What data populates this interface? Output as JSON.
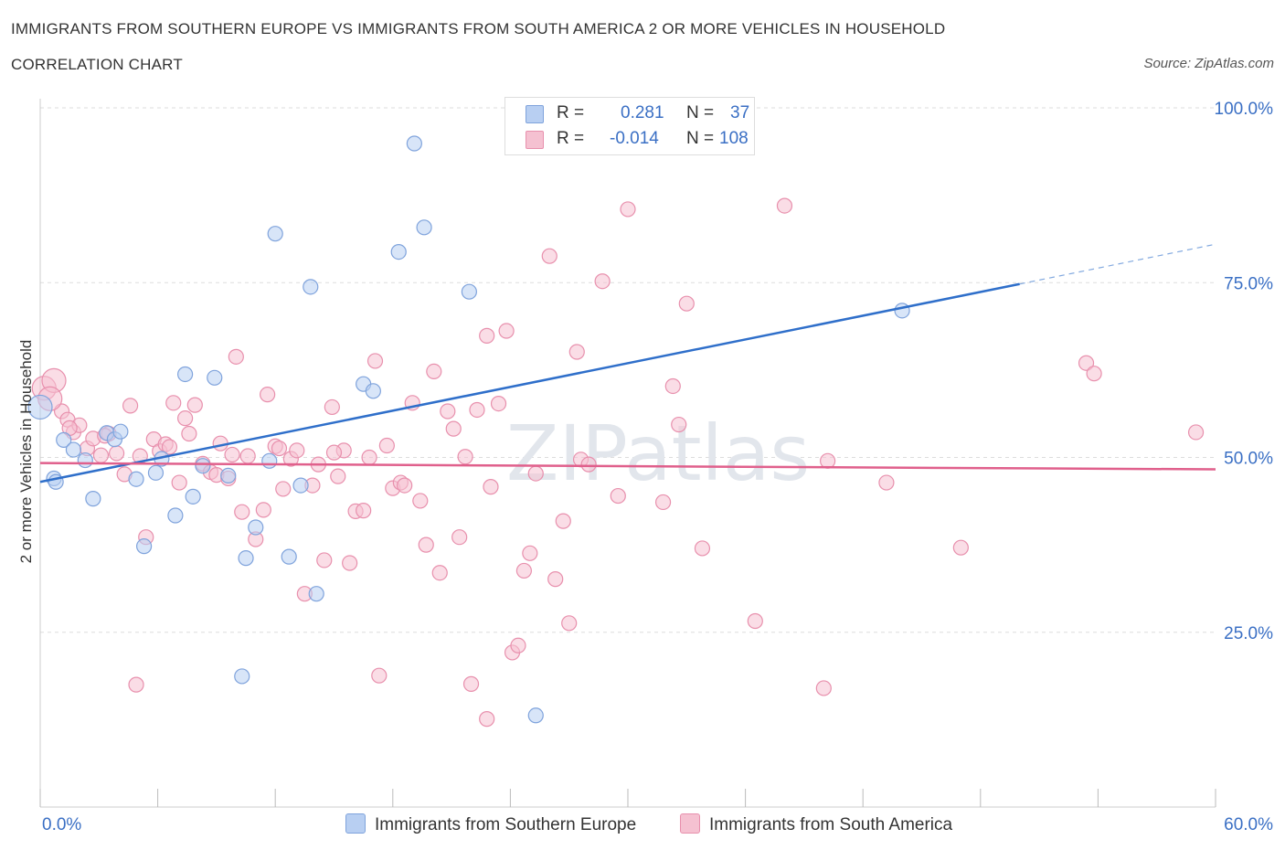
{
  "header": {
    "title": "IMMIGRANTS FROM SOUTHERN EUROPE VS IMMIGRANTS FROM SOUTH AMERICA 2 OR MORE VEHICLES IN HOUSEHOLD",
    "subtitle": "CORRELATION CHART",
    "source": "Source: ZipAtlas.com"
  },
  "watermark": "ZIPatlas",
  "legend": {
    "rows": [
      {
        "r_label": "R =",
        "r_value": "0.281",
        "n_label": "N =",
        "n_value": "37"
      },
      {
        "r_label": "R =",
        "r_value": "-0.014",
        "n_label": "N =",
        "n_value": "108"
      }
    ]
  },
  "colors": {
    "series_a_fill": "#b8cff2",
    "series_a_stroke": "#7fa3dc",
    "series_a_line": "#2f6fca",
    "series_b_fill": "#f5c1d1",
    "series_b_stroke": "#e890ad",
    "series_b_line": "#e0608c",
    "axis_label": "#3a6fc4",
    "grid": "#dddddd"
  },
  "chart_data": {
    "type": "scatter",
    "title": "IMMIGRANTS FROM SOUTHERN EUROPE VS IMMIGRANTS FROM SOUTH AMERICA 2 OR MORE VEHICLES IN HOUSEHOLD",
    "xlabel": "",
    "ylabel": "2 or more Vehicles in Household",
    "xlim": [
      0,
      60
    ],
    "ylim": [
      0,
      100
    ],
    "x_tick_labels": [
      "0.0%",
      "60.0%"
    ],
    "y_tick_labels": [
      "25.0%",
      "50.0%",
      "75.0%",
      "100.0%"
    ],
    "y_ticks": [
      25,
      50,
      75,
      100
    ],
    "grid": true,
    "legend_position": "top-center",
    "series": [
      {
        "name": "Immigrants from Southern Europe",
        "R": 0.281,
        "N": 37,
        "trend": {
          "x": [
            0,
            50
          ],
          "y": [
            46.5,
            74.8
          ],
          "dashed_to": [
            60,
            80.5
          ]
        },
        "points": [
          [
            0.0,
            57.2
          ],
          [
            0.7,
            47.0
          ],
          [
            1.2,
            52.5
          ],
          [
            1.7,
            51.1
          ],
          [
            2.3,
            49.6
          ],
          [
            2.7,
            44.1
          ],
          [
            3.4,
            53.5
          ],
          [
            3.8,
            52.6
          ],
          [
            4.1,
            53.7
          ],
          [
            4.9,
            46.9
          ],
          [
            5.3,
            37.3
          ],
          [
            5.9,
            47.8
          ],
          [
            6.2,
            49.8
          ],
          [
            6.9,
            41.7
          ],
          [
            7.4,
            61.9
          ],
          [
            7.8,
            44.4
          ],
          [
            8.3,
            48.8
          ],
          [
            8.9,
            61.4
          ],
          [
            9.6,
            47.4
          ],
          [
            10.3,
            18.7
          ],
          [
            10.5,
            35.6
          ],
          [
            11.0,
            40.0
          ],
          [
            11.7,
            49.5
          ],
          [
            12.0,
            82.0
          ],
          [
            12.7,
            35.8
          ],
          [
            13.3,
            46.0
          ],
          [
            13.8,
            74.4
          ],
          [
            14.1,
            30.5
          ],
          [
            16.5,
            60.5
          ],
          [
            17.0,
            59.5
          ],
          [
            18.3,
            79.4
          ],
          [
            19.1,
            94.9
          ],
          [
            19.6,
            82.9
          ],
          [
            21.9,
            73.7
          ],
          [
            25.3,
            13.1
          ],
          [
            44.0,
            71.0
          ],
          [
            0.8,
            46.5
          ]
        ]
      },
      {
        "name": "Immigrants from South America",
        "R": -0.014,
        "N": 108,
        "trend": {
          "x": [
            0,
            60
          ],
          "y": [
            49.2,
            48.3
          ]
        },
        "points": [
          [
            0.2,
            59.9
          ],
          [
            0.7,
            61.0
          ],
          [
            1.1,
            56.6
          ],
          [
            1.4,
            55.4
          ],
          [
            1.7,
            53.6
          ],
          [
            2.0,
            54.6
          ],
          [
            2.4,
            51.3
          ],
          [
            2.7,
            52.7
          ],
          [
            3.1,
            50.3
          ],
          [
            3.5,
            53.4
          ],
          [
            3.9,
            50.6
          ],
          [
            4.3,
            47.6
          ],
          [
            4.6,
            57.4
          ],
          [
            4.9,
            17.5
          ],
          [
            5.1,
            50.2
          ],
          [
            5.4,
            38.6
          ],
          [
            5.8,
            52.6
          ],
          [
            6.1,
            50.9
          ],
          [
            6.4,
            51.9
          ],
          [
            6.8,
            57.8
          ],
          [
            7.1,
            46.4
          ],
          [
            7.4,
            55.6
          ],
          [
            7.6,
            53.4
          ],
          [
            7.9,
            57.5
          ],
          [
            8.3,
            49.1
          ],
          [
            8.7,
            47.9
          ],
          [
            9.0,
            47.5
          ],
          [
            9.2,
            52.0
          ],
          [
            9.6,
            47.0
          ],
          [
            10.0,
            64.4
          ],
          [
            10.3,
            42.2
          ],
          [
            10.6,
            50.2
          ],
          [
            11.0,
            38.3
          ],
          [
            11.4,
            42.5
          ],
          [
            11.6,
            59.0
          ],
          [
            12.0,
            51.6
          ],
          [
            12.4,
            45.5
          ],
          [
            12.8,
            49.8
          ],
          [
            13.1,
            51.0
          ],
          [
            13.5,
            30.5
          ],
          [
            13.9,
            46.0
          ],
          [
            14.2,
            49.0
          ],
          [
            14.5,
            35.3
          ],
          [
            14.9,
            57.2
          ],
          [
            15.2,
            47.3
          ],
          [
            15.5,
            51.0
          ],
          [
            15.8,
            34.9
          ],
          [
            16.1,
            42.3
          ],
          [
            16.5,
            42.4
          ],
          [
            16.8,
            50.0
          ],
          [
            17.1,
            63.8
          ],
          [
            17.3,
            18.8
          ],
          [
            17.7,
            51.7
          ],
          [
            18.0,
            45.6
          ],
          [
            18.4,
            46.4
          ],
          [
            18.6,
            46.0
          ],
          [
            19.0,
            57.8
          ],
          [
            19.4,
            43.8
          ],
          [
            19.7,
            37.5
          ],
          [
            20.1,
            62.3
          ],
          [
            20.4,
            33.5
          ],
          [
            20.8,
            56.6
          ],
          [
            21.1,
            54.1
          ],
          [
            21.4,
            38.6
          ],
          [
            21.7,
            50.1
          ],
          [
            22.0,
            17.6
          ],
          [
            22.3,
            56.8
          ],
          [
            22.8,
            12.6
          ],
          [
            22.8,
            67.4
          ],
          [
            23.0,
            45.8
          ],
          [
            23.4,
            57.7
          ],
          [
            23.8,
            68.1
          ],
          [
            24.1,
            22.1
          ],
          [
            24.4,
            23.1
          ],
          [
            24.7,
            33.8
          ],
          [
            25.0,
            36.3
          ],
          [
            25.3,
            47.7
          ],
          [
            26.0,
            78.8
          ],
          [
            26.3,
            32.6
          ],
          [
            26.7,
            40.9
          ],
          [
            27.0,
            26.3
          ],
          [
            27.4,
            65.1
          ],
          [
            27.6,
            49.7
          ],
          [
            28.0,
            49.0
          ],
          [
            28.7,
            75.2
          ],
          [
            29.5,
            44.5
          ],
          [
            30.0,
            85.5
          ],
          [
            31.8,
            43.6
          ],
          [
            32.3,
            60.2
          ],
          [
            32.6,
            54.7
          ],
          [
            33.0,
            72.0
          ],
          [
            33.8,
            37.0
          ],
          [
            36.5,
            26.6
          ],
          [
            38.0,
            86.0
          ],
          [
            40.0,
            17.0
          ],
          [
            40.2,
            49.5
          ],
          [
            43.2,
            46.4
          ],
          [
            47.0,
            37.1
          ],
          [
            53.4,
            63.5
          ],
          [
            53.8,
            62.0
          ],
          [
            59.0,
            53.6
          ],
          [
            0.5,
            58.4
          ],
          [
            1.5,
            54.2
          ],
          [
            3.3,
            53.1
          ],
          [
            6.6,
            51.5
          ],
          [
            9.8,
            50.4
          ],
          [
            12.2,
            51.3
          ],
          [
            15.0,
            50.7
          ]
        ]
      }
    ]
  }
}
